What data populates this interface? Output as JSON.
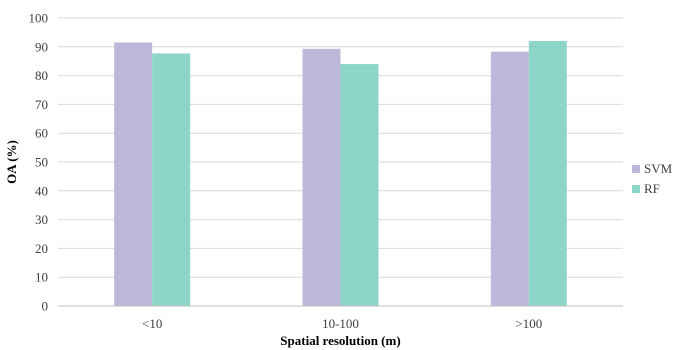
{
  "chart_data": {
    "type": "bar",
    "categories": [
      "<10",
      "10-100",
      ">100"
    ],
    "series": [
      {
        "name": "SVM",
        "values": [
          91.5,
          89.3,
          88.3
        ],
        "color": "#bdb8d9"
      },
      {
        "name": "RF",
        "values": [
          87.7,
          84.0,
          92.0
        ],
        "color": "#8dd5c7"
      }
    ],
    "title": "",
    "xlabel": "Spatial resolution (m)",
    "ylabel": "OA (%)",
    "ylim": [
      0,
      100
    ],
    "yticks": [
      0,
      10,
      20,
      30,
      40,
      50,
      60,
      70,
      80,
      90,
      100
    ],
    "grid": true,
    "legend": "right"
  }
}
